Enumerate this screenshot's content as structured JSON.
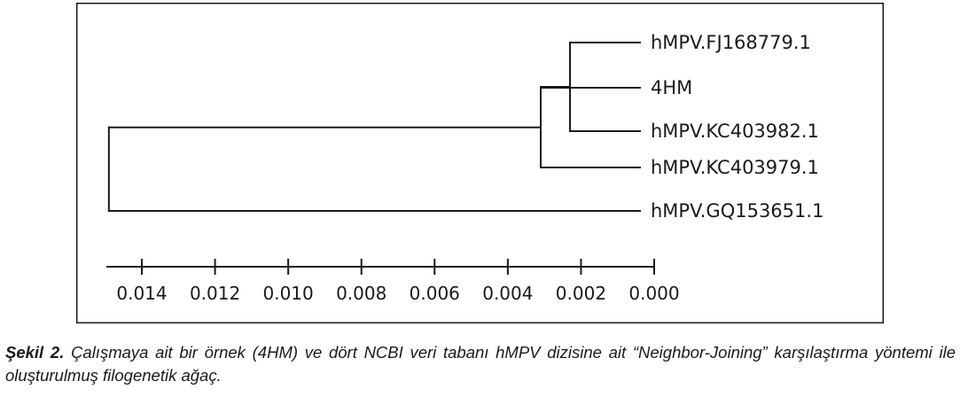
{
  "tree": {
    "leaves": [
      {
        "id": "fj",
        "label": "hMPV.FJ168779.1"
      },
      {
        "id": "hm",
        "label": "4HM"
      },
      {
        "id": "kc982",
        "label": "hMPV.KC403982.1"
      },
      {
        "id": "kc979",
        "label": "hMPV.KC403979.1"
      },
      {
        "id": "gq",
        "label": "hMPV.GQ153651.1"
      }
    ],
    "nodes": [
      {
        "id": "n1",
        "distance_to_tip": 0.0023,
        "children": [
          "fj",
          "kc982"
        ]
      },
      {
        "id": "n2",
        "distance_to_tip": 0.0031,
        "children": [
          "hm",
          "n1"
        ]
      },
      {
        "id": "n3",
        "distance_to_tip": 0.0031,
        "children": [
          "n2",
          "kc979"
        ]
      },
      {
        "id": "root",
        "distance_to_tip": 0.0149,
        "children": [
          "n3",
          "gq"
        ]
      }
    ]
  },
  "scale_axis": {
    "ticks": [
      "0.014",
      "0.012",
      "0.010",
      "0.008",
      "0.006",
      "0.004",
      "0.002",
      "0.000"
    ],
    "values": [
      0.014,
      0.012,
      0.01,
      0.008,
      0.006,
      0.004,
      0.002,
      0.0
    ]
  },
  "caption": {
    "label": "Şekil 2.",
    "text": " Çalışmaya ait bir örnek (4HM) ve dört NCBI veri tabanı hMPV dizisine ait “Neighbor-Joining” karşılaştırma yöntemi ile oluşturulmuş filogenetik ağaç."
  },
  "colors": {
    "line": "#1a1a1a",
    "frame": "#1a1a1a",
    "text": "#1a1a1a"
  }
}
